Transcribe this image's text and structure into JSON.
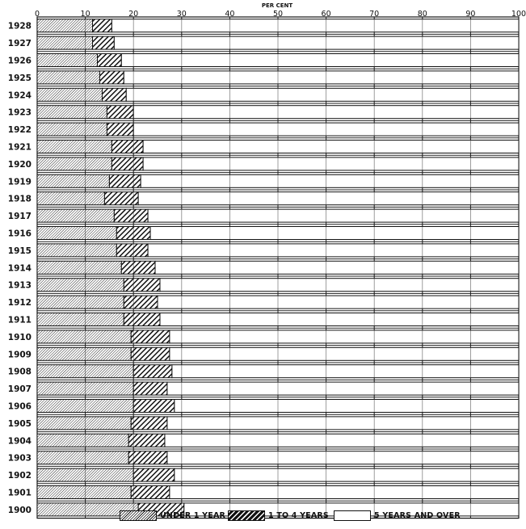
{
  "chart_data": {
    "type": "bar",
    "orientation": "horizontal",
    "stacked": true,
    "title": "PER CENT",
    "xlim": [
      0,
      100
    ],
    "x_ticks": [
      "0",
      "10",
      "20",
      "30",
      "40",
      "50",
      "60",
      "70",
      "80",
      "90",
      "100"
    ],
    "categories": [
      "1928",
      "1927",
      "1926",
      "1925",
      "1924",
      "1923",
      "1922",
      "1921",
      "1920",
      "1919",
      "1918",
      "1917",
      "1916",
      "1915",
      "1914",
      "1913",
      "1912",
      "1911",
      "1910",
      "1909",
      "1908",
      "1907",
      "1906",
      "1905",
      "1904",
      "1903",
      "1902",
      "1901",
      "1900"
    ],
    "series": [
      {
        "name": "UNDER 1 YEAR",
        "pattern": "fine-hatch",
        "values": [
          11.5,
          11.5,
          12.5,
          13,
          13.5,
          14.5,
          14.5,
          15.5,
          15.5,
          15,
          14,
          16,
          16.5,
          16.5,
          17.5,
          18,
          18,
          18,
          19.5,
          19.5,
          20,
          20,
          20,
          19.5,
          19,
          19,
          20,
          19.5,
          21
        ]
      },
      {
        "name": "1 TO 4 YEARS",
        "pattern": "coarse-hatch",
        "values": [
          4,
          4.5,
          5,
          5,
          5,
          5.5,
          5.5,
          6.5,
          6.5,
          6.5,
          7,
          7,
          7,
          6.5,
          7,
          7.5,
          7,
          7.5,
          8,
          8,
          8,
          7,
          8.5,
          7.5,
          7.5,
          8,
          8.5,
          8,
          9.5
        ]
      },
      {
        "name": "5 YEARS AND OVER",
        "pattern": "blank",
        "values": [
          84.5,
          84,
          82.5,
          82,
          81.5,
          80,
          80,
          78,
          78,
          78.5,
          79,
          77,
          76.5,
          77,
          75.5,
          74.5,
          75,
          74.5,
          72.5,
          72.5,
          72,
          73,
          71.5,
          73,
          73.5,
          73,
          71.5,
          72.5,
          69.5
        ]
      }
    ],
    "grid": true,
    "legend_position": "bottom"
  },
  "legend": {
    "items": [
      {
        "label": "UNDER 1 YEAR"
      },
      {
        "label": "1 TO 4 YEARS"
      },
      {
        "label": "5 YEARS AND OVER"
      }
    ]
  }
}
